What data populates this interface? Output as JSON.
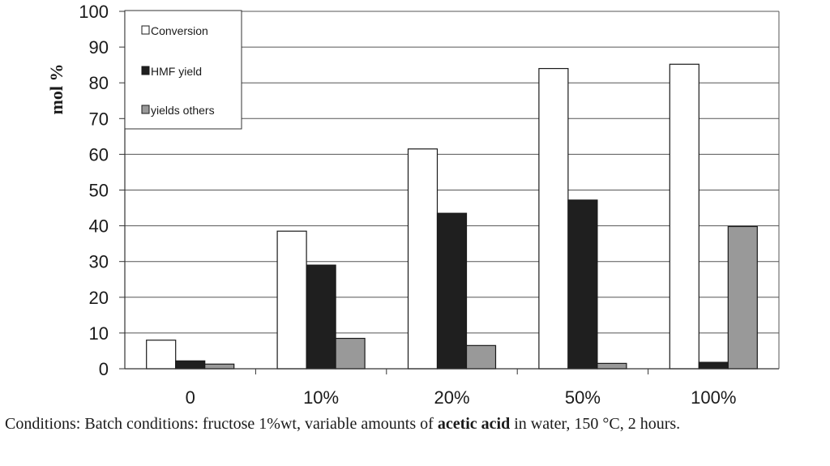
{
  "chart_data": {
    "type": "bar",
    "categories": [
      "0",
      "10%",
      "20%",
      "50%",
      "100%"
    ],
    "series": [
      {
        "name": "Conversion",
        "values": [
          8,
          38.5,
          61.5,
          84,
          85.2
        ],
        "color": "#ffffff"
      },
      {
        "name": "HMF yield",
        "values": [
          2.2,
          29,
          43.5,
          47.2,
          1.8
        ],
        "color": "#1f1f1f"
      },
      {
        "name": "yields others",
        "values": [
          1.3,
          8.5,
          6.5,
          1.5,
          39.8
        ],
        "color": "#999999"
      }
    ],
    "ylabel": "mol %",
    "xlabel": "",
    "ylim": [
      0,
      100
    ],
    "yticks": [
      "0",
      "10",
      "20",
      "30",
      "40",
      "50",
      "60",
      "70",
      "80",
      "90",
      "100"
    ],
    "grid": true,
    "legend_position": "top-left"
  },
  "caption": {
    "before": "Conditions: Batch conditions: fructose 1%wt, variable amounts of ",
    "bold": "acetic acid",
    "after": " in water, 150 °C, 2 hours."
  }
}
